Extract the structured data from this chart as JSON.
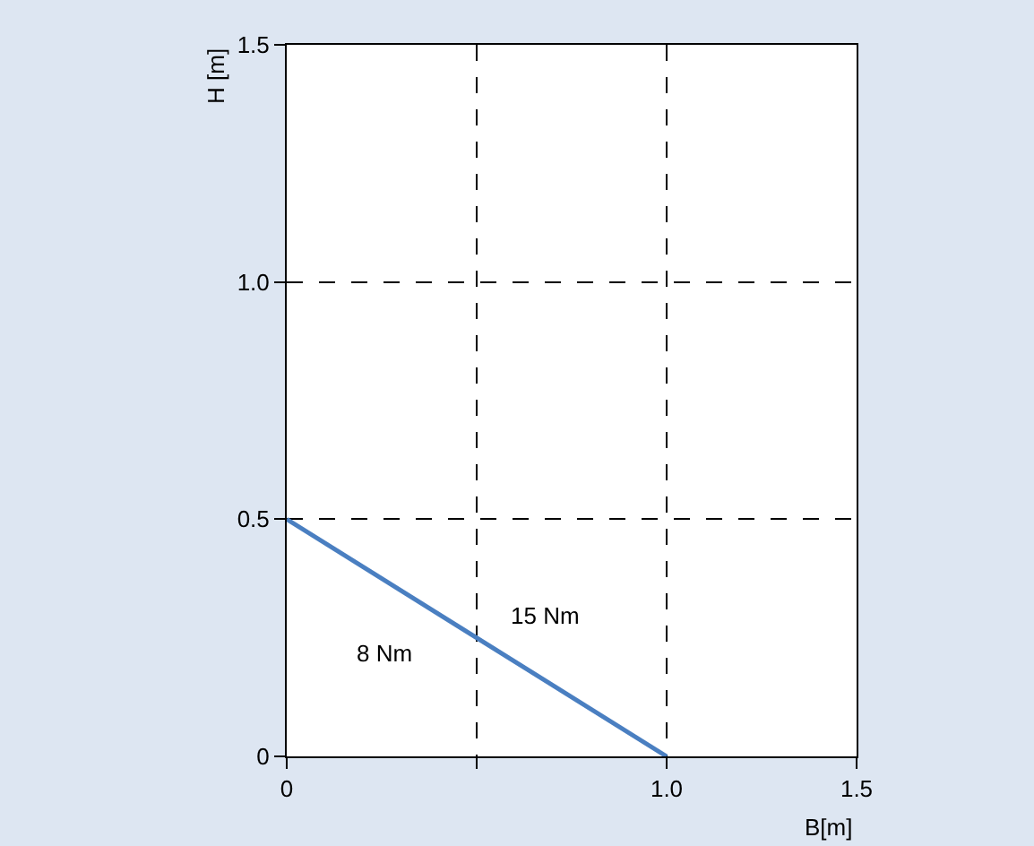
{
  "chart_data": {
    "type": "line",
    "xlabel": "B[m]",
    "ylabel": "H [m]",
    "x": [
      0,
      1.0
    ],
    "series": [
      {
        "color": "#4a7fc1",
        "values": [
          0.5,
          0
        ]
      }
    ],
    "xlim": [
      0,
      1.5
    ],
    "ylim": [
      0,
      1.5
    ],
    "xticks": [
      0,
      {
        "value": 0.5,
        "label": null
      },
      {
        "value": 1.0,
        "label": "1.0"
      },
      1.5
    ],
    "yticks": [
      0,
      0.5,
      {
        "value": 1.0,
        "label": "1.0"
      },
      1.5
    ],
    "grid": true,
    "line_style": "solid",
    "marker": "none",
    "annotations": [
      "8 Nm",
      "15 Nm"
    ]
  }
}
